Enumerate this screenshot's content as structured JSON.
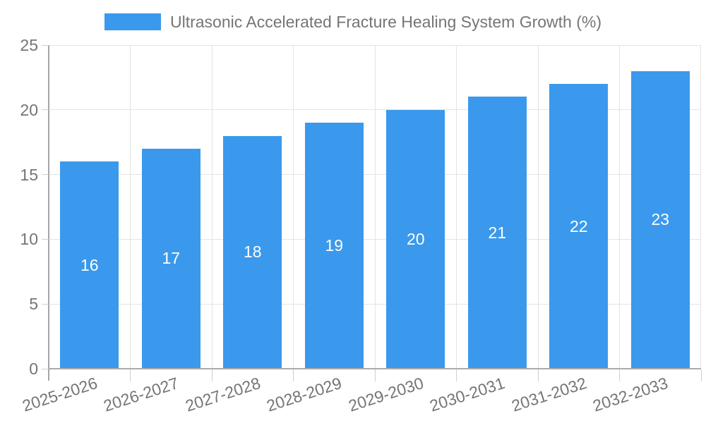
{
  "chart_data": {
    "type": "bar",
    "series_name": "Ultrasonic Accelerated Fracture Healing System Growth (%)",
    "categories": [
      "2025-2026",
      "2026-2027",
      "2027-2028",
      "2028-2029",
      "2029-2030",
      "2030-2031",
      "2031-2032",
      "2032-2033"
    ],
    "values": [
      16,
      17,
      18,
      19,
      20,
      21,
      22,
      23
    ],
    "value_labels": [
      "16",
      "17",
      "18",
      "19",
      "20",
      "21",
      "22",
      "23"
    ],
    "ytick_labels": [
      "0",
      "5",
      "10",
      "15",
      "20",
      "25"
    ],
    "yticks": [
      0,
      5,
      10,
      15,
      20,
      25
    ],
    "ylim": [
      0,
      25
    ],
    "grid": true,
    "legend_position": "top",
    "show_value_labels": true,
    "colors": {
      "bar": "#3A99EC",
      "value_label": "#FFFFFF",
      "axis_text": "#757575",
      "legend_text": "#757575",
      "gridline": "#E4E4E4",
      "tick_mark": "#CFCFCF",
      "axis_line": "#A6A6A6"
    }
  }
}
